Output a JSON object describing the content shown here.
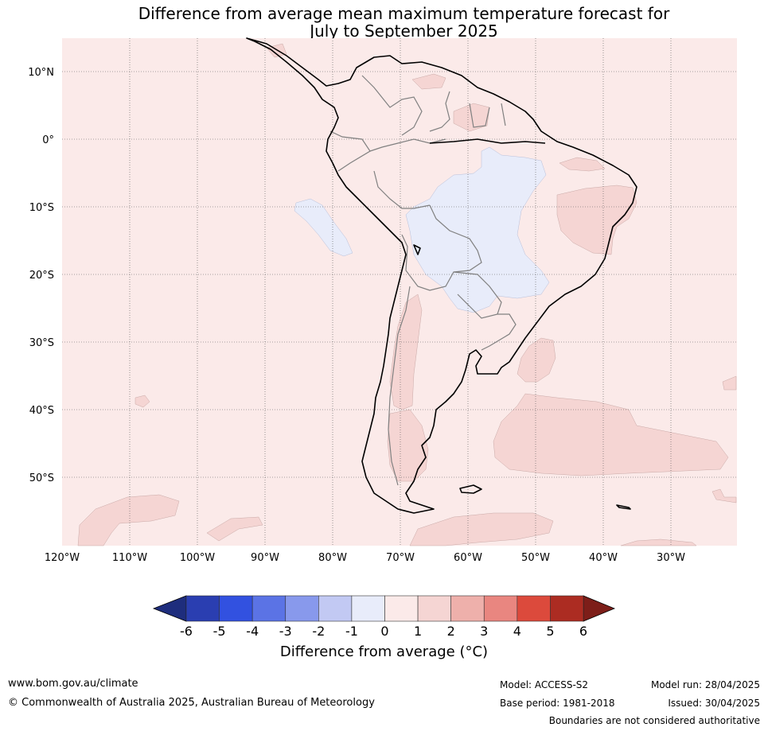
{
  "title": {
    "line1": "Difference from average mean maximum temperature forecast for",
    "line2": "July to September 2025"
  },
  "map": {
    "region": "South America",
    "lat_ticks": [
      "10°N",
      "0°",
      "10°S",
      "20°S",
      "30°S",
      "40°S",
      "50°S"
    ],
    "lon_ticks": [
      "120°W",
      "110°W",
      "100°W",
      "90°W",
      "80°W",
      "70°W",
      "60°W",
      "50°W",
      "40°W",
      "30°W"
    ],
    "lat_range": [
      -60,
      15
    ],
    "lon_range": [
      -120,
      -20
    ],
    "background_color": "#fbeae9",
    "land_border_color": "#000000",
    "country_border_color": "#808080"
  },
  "colorbar": {
    "ticks": [
      "-6",
      "-5",
      "-4",
      "-3",
      "-2",
      "-1",
      "0",
      "1",
      "2",
      "3",
      "4",
      "5",
      "6"
    ],
    "colors": [
      "#2a3eb1",
      "#3251e0",
      "#5b73e5",
      "#8899ec",
      "#c2c9f3",
      "#e8ecfa",
      "#fbeae9",
      "#f5d5d3",
      "#eeb0ab",
      "#e98680",
      "#dc4a3c",
      "#ac2c22"
    ],
    "under_color": "#1e2d7d",
    "over_color": "#7d1e19",
    "label": "Difference from average (°C)"
  },
  "footer": {
    "url": "www.bom.gov.au/climate",
    "copyright": "© Commonwealth of Australia 2025, Australian Bureau of Meteorology",
    "model": "Model: ACCESS-S2",
    "base_period": "Base period: 1981-2018",
    "model_run": "Model run: 28/04/2025",
    "issued": "Issued: 30/04/2025",
    "disclaimer": "Boundaries are not considered authoritative"
  }
}
